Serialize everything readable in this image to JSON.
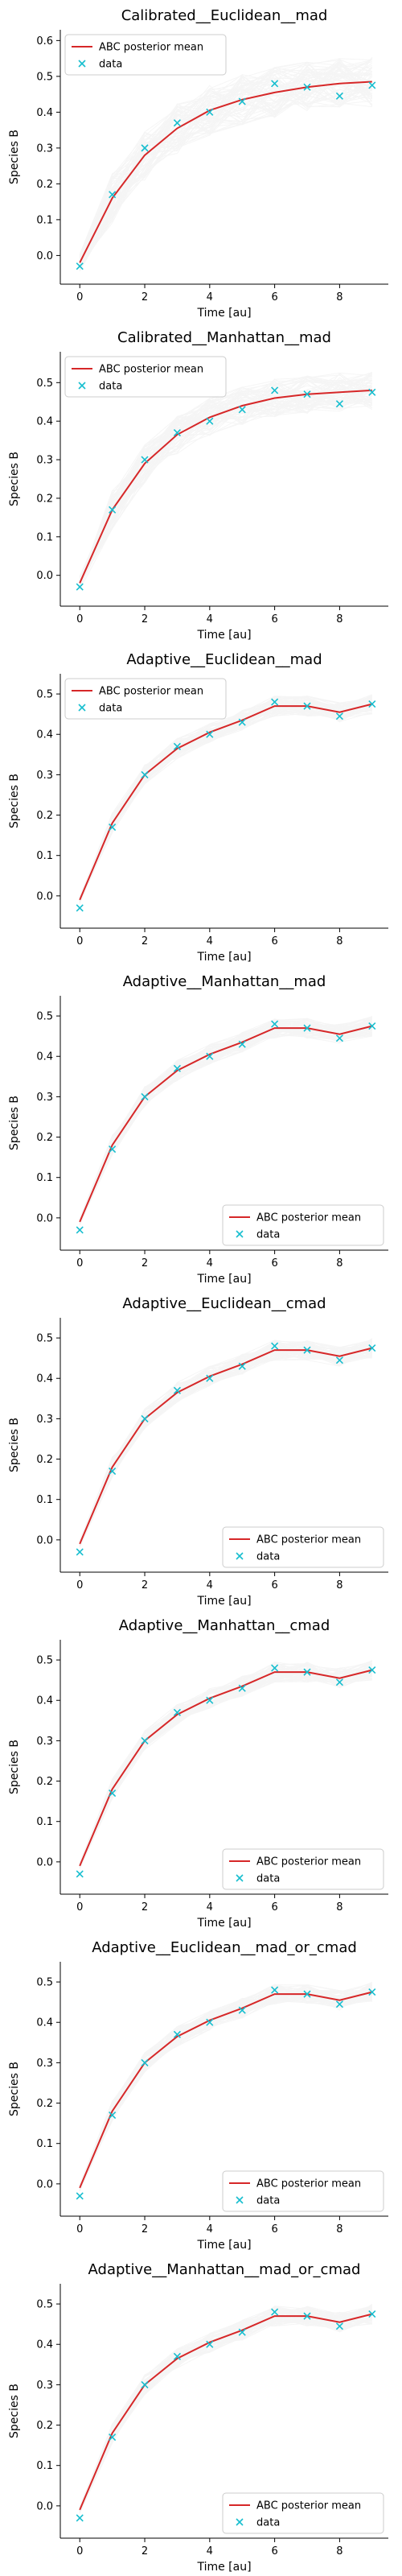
{
  "figure": {
    "background": "#ffffff"
  },
  "style": {
    "mean_color": "#d62728",
    "data_color": "#17becf",
    "sample_color": "#9e9e9e",
    "axis_color": "#000000"
  },
  "chart_data": [
    {
      "type": "line",
      "title": "Calibrated__Euclidean__mad",
      "xlabel": "Time [au]",
      "ylabel": "Species B",
      "xlim": [
        -0.6,
        9.5
      ],
      "ylim": [
        -0.08,
        0.63
      ],
      "xticks": [
        0,
        2,
        4,
        6,
        8
      ],
      "yticks": [
        0.0,
        0.1,
        0.2,
        0.3,
        0.4,
        0.5,
        0.6
      ],
      "ytick_labels": [
        "0.0",
        "0.1",
        "0.2",
        "0.3",
        "0.4",
        "0.5",
        "0.6"
      ],
      "legend": "upper-left",
      "band": 0.07,
      "x": [
        0,
        1,
        2,
        3,
        4,
        5,
        6,
        7,
        8,
        9
      ],
      "series": [
        {
          "name": "ABC posterior mean",
          "kind": "line",
          "values": [
            -0.02,
            0.16,
            0.28,
            0.355,
            0.405,
            0.435,
            0.455,
            0.47,
            0.48,
            0.485
          ]
        },
        {
          "name": "data",
          "kind": "marker",
          "values": [
            -0.03,
            0.17,
            0.3,
            0.37,
            0.4,
            0.43,
            0.48,
            0.47,
            0.445,
            0.475
          ]
        }
      ]
    },
    {
      "type": "line",
      "title": "Calibrated__Manhattan__mad",
      "xlabel": "Time [au]",
      "ylabel": "Species B",
      "xlim": [
        -0.6,
        9.5
      ],
      "ylim": [
        -0.08,
        0.58
      ],
      "xticks": [
        0,
        2,
        4,
        6,
        8
      ],
      "yticks": [
        0.0,
        0.1,
        0.2,
        0.3,
        0.4,
        0.5
      ],
      "ytick_labels": [
        "0.0",
        "0.1",
        "0.2",
        "0.3",
        "0.4",
        "0.5"
      ],
      "legend": "upper-left",
      "band": 0.05,
      "x": [
        0,
        1,
        2,
        3,
        4,
        5,
        6,
        7,
        8,
        9
      ],
      "series": [
        {
          "name": "ABC posterior mean",
          "kind": "line",
          "values": [
            -0.02,
            0.17,
            0.29,
            0.365,
            0.41,
            0.44,
            0.46,
            0.47,
            0.475,
            0.48
          ]
        },
        {
          "name": "data",
          "kind": "marker",
          "values": [
            -0.03,
            0.17,
            0.3,
            0.37,
            0.4,
            0.43,
            0.48,
            0.47,
            0.445,
            0.475
          ]
        }
      ]
    },
    {
      "type": "line",
      "title": "Adaptive__Euclidean__mad",
      "xlabel": "Time [au]",
      "ylabel": "Species B",
      "xlim": [
        -0.6,
        9.5
      ],
      "ylim": [
        -0.08,
        0.55
      ],
      "xticks": [
        0,
        2,
        4,
        6,
        8
      ],
      "yticks": [
        0.0,
        0.1,
        0.2,
        0.3,
        0.4,
        0.5
      ],
      "ytick_labels": [
        "0.0",
        "0.1",
        "0.2",
        "0.3",
        "0.4",
        "0.5"
      ],
      "legend": "upper-left",
      "band": 0.025,
      "x": [
        0,
        1,
        2,
        3,
        4,
        5,
        6,
        7,
        8,
        9
      ],
      "series": [
        {
          "name": "ABC posterior mean",
          "kind": "line",
          "values": [
            -0.01,
            0.18,
            0.3,
            0.365,
            0.405,
            0.435,
            0.47,
            0.47,
            0.455,
            0.475
          ]
        },
        {
          "name": "data",
          "kind": "marker",
          "values": [
            -0.03,
            0.17,
            0.3,
            0.37,
            0.4,
            0.43,
            0.48,
            0.47,
            0.445,
            0.475
          ]
        }
      ]
    },
    {
      "type": "line",
      "title": "Adaptive__Manhattan__mad",
      "xlabel": "Time [au]",
      "ylabel": "Species B",
      "xlim": [
        -0.6,
        9.5
      ],
      "ylim": [
        -0.08,
        0.55
      ],
      "xticks": [
        0,
        2,
        4,
        6,
        8
      ],
      "yticks": [
        0.0,
        0.1,
        0.2,
        0.3,
        0.4,
        0.5
      ],
      "ytick_labels": [
        "0.0",
        "0.1",
        "0.2",
        "0.3",
        "0.4",
        "0.5"
      ],
      "legend": "lower-right",
      "band": 0.025,
      "x": [
        0,
        1,
        2,
        3,
        4,
        5,
        6,
        7,
        8,
        9
      ],
      "series": [
        {
          "name": "ABC posterior mean",
          "kind": "line",
          "values": [
            -0.01,
            0.18,
            0.3,
            0.365,
            0.405,
            0.435,
            0.47,
            0.47,
            0.455,
            0.475
          ]
        },
        {
          "name": "data",
          "kind": "marker",
          "values": [
            -0.03,
            0.17,
            0.3,
            0.37,
            0.4,
            0.43,
            0.48,
            0.47,
            0.445,
            0.475
          ]
        }
      ]
    },
    {
      "type": "line",
      "title": "Adaptive__Euclidean__cmad",
      "xlabel": "Time [au]",
      "ylabel": "Species B",
      "xlim": [
        -0.6,
        9.5
      ],
      "ylim": [
        -0.08,
        0.55
      ],
      "xticks": [
        0,
        2,
        4,
        6,
        8
      ],
      "yticks": [
        0.0,
        0.1,
        0.2,
        0.3,
        0.4,
        0.5
      ],
      "ytick_labels": [
        "0.0",
        "0.1",
        "0.2",
        "0.3",
        "0.4",
        "0.5"
      ],
      "legend": "lower-right",
      "band": 0.025,
      "x": [
        0,
        1,
        2,
        3,
        4,
        5,
        6,
        7,
        8,
        9
      ],
      "series": [
        {
          "name": "ABC posterior mean",
          "kind": "line",
          "values": [
            -0.01,
            0.18,
            0.3,
            0.365,
            0.405,
            0.435,
            0.47,
            0.47,
            0.455,
            0.475
          ]
        },
        {
          "name": "data",
          "kind": "marker",
          "values": [
            -0.03,
            0.17,
            0.3,
            0.37,
            0.4,
            0.43,
            0.48,
            0.47,
            0.445,
            0.475
          ]
        }
      ]
    },
    {
      "type": "line",
      "title": "Adaptive__Manhattan__cmad",
      "xlabel": "Time [au]",
      "ylabel": "Species B",
      "xlim": [
        -0.6,
        9.5
      ],
      "ylim": [
        -0.08,
        0.55
      ],
      "xticks": [
        0,
        2,
        4,
        6,
        8
      ],
      "yticks": [
        0.0,
        0.1,
        0.2,
        0.3,
        0.4,
        0.5
      ],
      "ytick_labels": [
        "0.0",
        "0.1",
        "0.2",
        "0.3",
        "0.4",
        "0.5"
      ],
      "legend": "lower-right",
      "band": 0.025,
      "x": [
        0,
        1,
        2,
        3,
        4,
        5,
        6,
        7,
        8,
        9
      ],
      "series": [
        {
          "name": "ABC posterior mean",
          "kind": "line",
          "values": [
            -0.01,
            0.18,
            0.3,
            0.365,
            0.405,
            0.435,
            0.47,
            0.47,
            0.455,
            0.475
          ]
        },
        {
          "name": "data",
          "kind": "marker",
          "values": [
            -0.03,
            0.17,
            0.3,
            0.37,
            0.4,
            0.43,
            0.48,
            0.47,
            0.445,
            0.475
          ]
        }
      ]
    },
    {
      "type": "line",
      "title": "Adaptive__Euclidean__mad_or_cmad",
      "xlabel": "Time [au]",
      "ylabel": "Species B",
      "xlim": [
        -0.6,
        9.5
      ],
      "ylim": [
        -0.08,
        0.55
      ],
      "xticks": [
        0,
        2,
        4,
        6,
        8
      ],
      "yticks": [
        0.0,
        0.1,
        0.2,
        0.3,
        0.4,
        0.5
      ],
      "ytick_labels": [
        "0.0",
        "0.1",
        "0.2",
        "0.3",
        "0.4",
        "0.5"
      ],
      "legend": "lower-right",
      "band": 0.025,
      "x": [
        0,
        1,
        2,
        3,
        4,
        5,
        6,
        7,
        8,
        9
      ],
      "series": [
        {
          "name": "ABC posterior mean",
          "kind": "line",
          "values": [
            -0.01,
            0.18,
            0.3,
            0.365,
            0.405,
            0.435,
            0.47,
            0.47,
            0.455,
            0.475
          ]
        },
        {
          "name": "data",
          "kind": "marker",
          "values": [
            -0.03,
            0.17,
            0.3,
            0.37,
            0.4,
            0.43,
            0.48,
            0.47,
            0.445,
            0.475
          ]
        }
      ]
    },
    {
      "type": "line",
      "title": "Adaptive__Manhattan__mad_or_cmad",
      "xlabel": "Time [au]",
      "ylabel": "Species B",
      "xlim": [
        -0.6,
        9.5
      ],
      "ylim": [
        -0.08,
        0.55
      ],
      "xticks": [
        0,
        2,
        4,
        6,
        8
      ],
      "yticks": [
        0.0,
        0.1,
        0.2,
        0.3,
        0.4,
        0.5
      ],
      "ytick_labels": [
        "0.0",
        "0.1",
        "0.2",
        "0.3",
        "0.4",
        "0.5"
      ],
      "legend": "lower-right",
      "band": 0.025,
      "x": [
        0,
        1,
        2,
        3,
        4,
        5,
        6,
        7,
        8,
        9
      ],
      "series": [
        {
          "name": "ABC posterior mean",
          "kind": "line",
          "values": [
            -0.01,
            0.18,
            0.3,
            0.365,
            0.405,
            0.435,
            0.47,
            0.47,
            0.455,
            0.475
          ]
        },
        {
          "name": "data",
          "kind": "marker",
          "values": [
            -0.03,
            0.17,
            0.3,
            0.37,
            0.4,
            0.43,
            0.48,
            0.47,
            0.445,
            0.475
          ]
        }
      ]
    }
  ]
}
